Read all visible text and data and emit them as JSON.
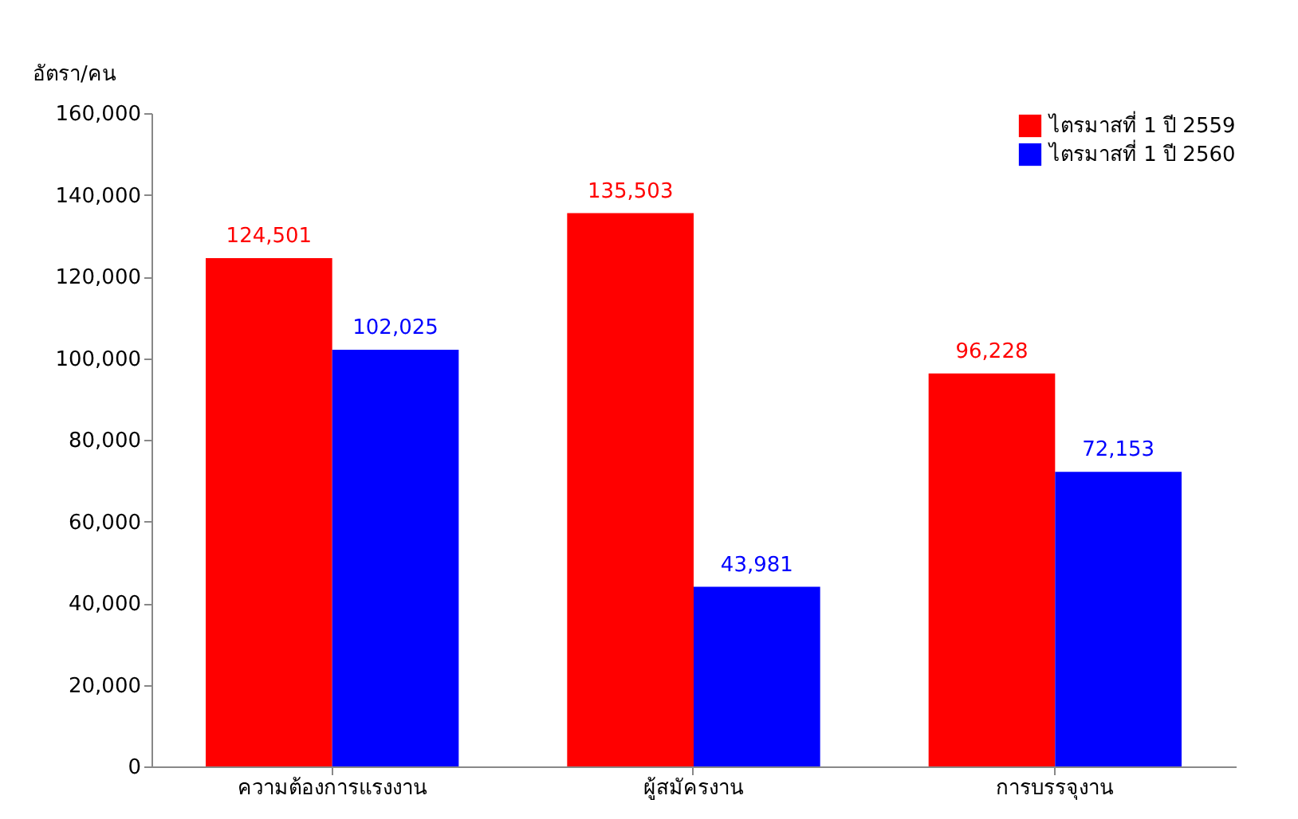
{
  "chart_data": {
    "type": "bar",
    "ylabel": "อัตรา/คน",
    "categories": [
      "ความต้องการแรงงาน",
      "ผู้สมัครงาน",
      "การบรรจุงาน"
    ],
    "series": [
      {
        "name": "ไตรมาสที่ 1 ปี 2559",
        "color": "#ff0000",
        "values": [
          124501,
          135503,
          96228
        ],
        "value_labels": [
          "124,501",
          "135,503",
          "96,228"
        ]
      },
      {
        "name": "ไตรมาสที่ 1 ปี 2560",
        "color": "#0000ff",
        "values": [
          102025,
          43981,
          72153
        ],
        "value_labels": [
          "102,025",
          "43,981",
          "72,153"
        ]
      }
    ],
    "ylim": [
      0,
      160000
    ],
    "yticks": [
      0,
      {
        "value": 20000,
        "label": "20,000"
      },
      {
        "value": 40000,
        "label": "40,000"
      },
      {
        "value": 60000,
        "label": "60,000"
      },
      {
        "value": 80000,
        "label": "80,000"
      },
      {
        "value": 100000,
        "label": "100,000"
      },
      {
        "value": 120000,
        "label": "120,000"
      },
      {
        "value": 140000,
        "label": "140,000"
      },
      {
        "value": 160000,
        "label": "160,000"
      }
    ],
    "legend": "top right"
  }
}
